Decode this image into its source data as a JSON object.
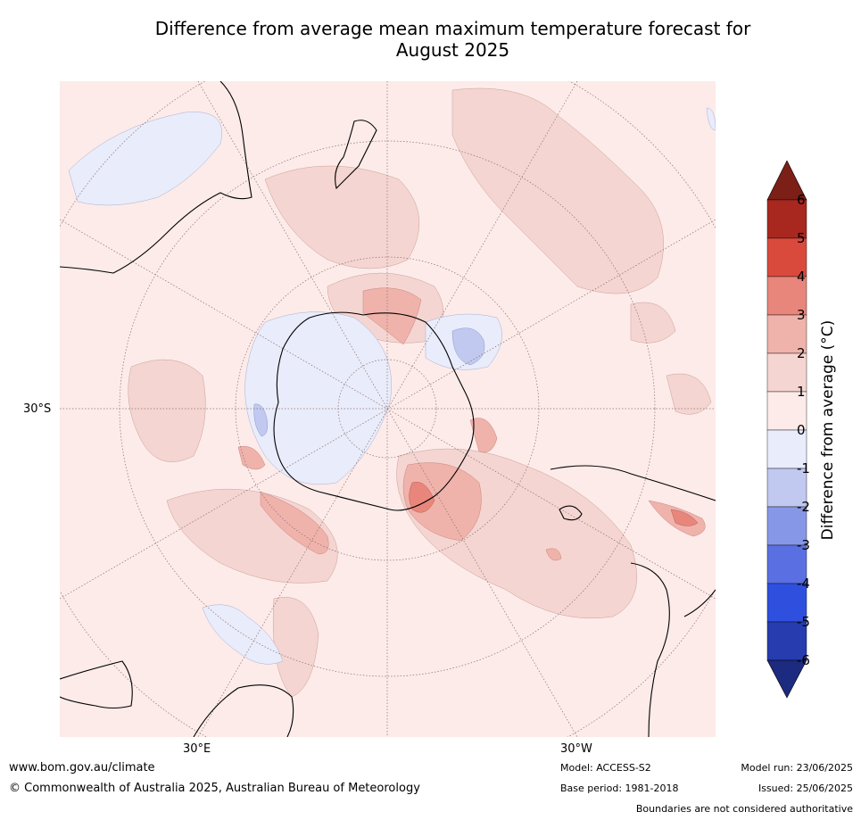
{
  "title_line1": "Difference from average mean maximum temperature forecast for",
  "title_line2": "August 2025",
  "lat_label": "30°S",
  "lon_labels": {
    "east": "30°E",
    "west": "30°W"
  },
  "colorbar": {
    "label": "Difference from average (°C)",
    "ticks": [
      "6",
      "5",
      "4",
      "3",
      "2",
      "1",
      "0",
      "-1",
      "-2",
      "-3",
      "-4",
      "-5",
      "-6"
    ],
    "colors": {
      "above_6": "#7b1f17",
      "5_6": "#a8281f",
      "4_5": "#d94a3d",
      "3_4": "#e8867c",
      "2_3": "#efb3ab",
      "1_2": "#f5d5d1",
      "0_1": "#fcebe9",
      "m1_0": "#e9ecfa",
      "m2_m1": "#c1c9f0",
      "m3_m2": "#8797e8",
      "m4_m3": "#5a70e2",
      "m5_m4": "#2f50de",
      "m6_m5": "#263caf",
      "below_m6": "#1c2a7f"
    }
  },
  "footer": {
    "url": "www.bom.gov.au/climate",
    "copyright": "© Commonwealth of Australia 2025, Australian Bureau of Meteorology",
    "model": "Model: ACCESS-S2",
    "base_period": "Base period: 1981-2018",
    "model_run": "Model run: 23/06/2025",
    "issued": "Issued: 25/06/2025",
    "disclaimer": "Boundaries are not considered authoritative"
  }
}
